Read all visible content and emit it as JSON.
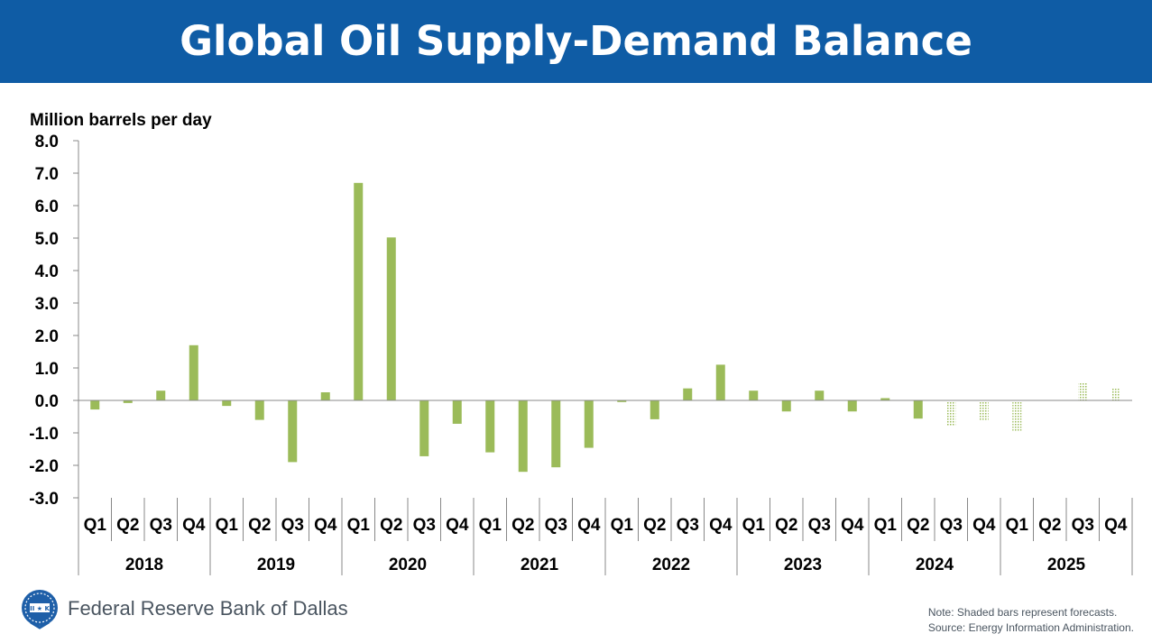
{
  "header": {
    "title": "Global Oil Supply-Demand Balance"
  },
  "chart_data": {
    "type": "bar",
    "title": "Global Oil Supply-Demand Balance",
    "ylabel": "Million barrels per day",
    "xlabel": "",
    "ylim": [
      -3.0,
      8.0
    ],
    "yticks": [
      "8.0",
      "7.0",
      "6.0",
      "5.0",
      "4.0",
      "3.0",
      "2.0",
      "1.0",
      "0.0",
      "-1.0",
      "-2.0",
      "-3.0"
    ],
    "yticks_values": [
      8,
      7,
      6,
      5,
      4,
      3,
      2,
      1,
      0,
      -1,
      -2,
      -3
    ],
    "quarters": [
      "Q1",
      "Q2",
      "Q3",
      "Q4"
    ],
    "years": [
      "2018",
      "2019",
      "2020",
      "2021",
      "2022",
      "2023",
      "2024",
      "2025"
    ],
    "values": [
      -0.28,
      -0.08,
      0.3,
      1.7,
      -0.17,
      -0.6,
      -1.9,
      0.25,
      6.7,
      5.02,
      -1.72,
      -0.72,
      -1.6,
      -2.2,
      -2.06,
      -1.46,
      -0.05,
      -0.58,
      0.37,
      1.1,
      0.3,
      -0.34,
      0.3,
      -0.34,
      0.07,
      -0.56,
      -0.8,
      -0.62,
      -0.95,
      -0.03,
      0.55,
      0.38
    ],
    "forecast": [
      false,
      false,
      false,
      false,
      false,
      false,
      false,
      false,
      false,
      false,
      false,
      false,
      false,
      false,
      false,
      false,
      false,
      false,
      false,
      false,
      false,
      false,
      false,
      false,
      false,
      false,
      true,
      true,
      true,
      true,
      true,
      true
    ],
    "grid": false,
    "colors": {
      "bar": "#9bbb59",
      "forecast": "#c4d79b",
      "axis": "#888888"
    }
  },
  "footer": {
    "org": "Federal Reserve Bank of Dallas",
    "logo_text": "II ★ K",
    "note": "Note: Shaded bars represent forecasts.",
    "source": "Source: Energy Information Administration."
  },
  "theme": {
    "banner": "#0f5ca5",
    "logo": "#1e5fa8",
    "footer_text": "#4a5560"
  }
}
